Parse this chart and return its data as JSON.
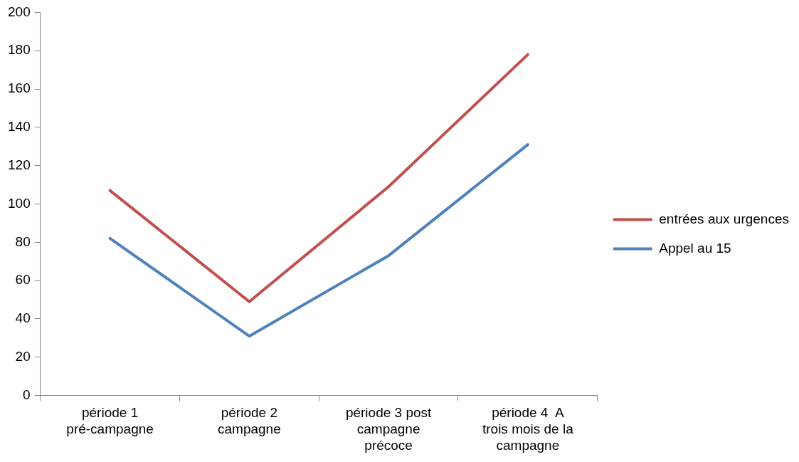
{
  "chart_data": {
    "type": "line",
    "categories": [
      "période 1 pré-campagne",
      "période 2 campagne",
      "période 3 post campagne précoce",
      "période 4  A trois mois de la campagne"
    ],
    "series": [
      {
        "name": "entrées aux urgences",
        "color": "#c0504d",
        "values": [
          107,
          49,
          109,
          178
        ]
      },
      {
        "name": "Appel au 15",
        "color": "#4f81bd",
        "values": [
          82,
          31,
          73,
          131
        ]
      }
    ],
    "ylim": [
      0,
      200
    ],
    "yticks": [
      0,
      20,
      40,
      60,
      80,
      100,
      120,
      140,
      160,
      180,
      200
    ],
    "grid": false,
    "legend": "right",
    "marker": "none",
    "line_style": "solid"
  }
}
